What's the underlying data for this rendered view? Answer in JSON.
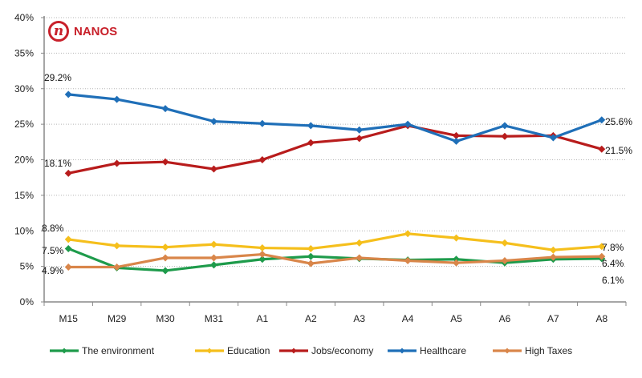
{
  "logo": {
    "mark": "n",
    "text": "NANOS"
  },
  "chart_data": {
    "type": "line",
    "title": "",
    "xlabel": "",
    "ylabel": "",
    "ylim": [
      0,
      40
    ],
    "yticks": [
      0,
      5,
      10,
      15,
      20,
      25,
      30,
      35,
      40
    ],
    "ytick_labels": [
      "0%",
      "5%",
      "10%",
      "15%",
      "20%",
      "25%",
      "30%",
      "35%",
      "40%"
    ],
    "grid": "horizontal-dotted",
    "legend_position": "bottom",
    "categories": [
      "M15",
      "M29",
      "M30",
      "M31",
      "A1",
      "A2",
      "A3",
      "A4",
      "A5",
      "A6",
      "A7",
      "A8"
    ],
    "series": [
      {
        "name": "The environment",
        "color": "#1e9b4b",
        "values": [
          7.5,
          4.8,
          4.4,
          5.2,
          6.0,
          6.4,
          6.1,
          5.9,
          6.0,
          5.5,
          6.0,
          6.1
        ],
        "labels": {
          "first": "7.5%",
          "last": "6.1%"
        }
      },
      {
        "name": "Education",
        "color": "#f5bf1c",
        "values": [
          8.8,
          7.9,
          7.7,
          8.1,
          7.6,
          7.5,
          8.3,
          9.6,
          9.0,
          8.3,
          7.3,
          7.8
        ],
        "labels": {
          "first": "8.8%",
          "last": "7.8%"
        }
      },
      {
        "name": "Jobs/economy",
        "color": "#b81c1c",
        "values": [
          18.1,
          19.5,
          19.7,
          18.7,
          20.0,
          22.4,
          23.0,
          24.8,
          23.4,
          23.3,
          23.4,
          21.5
        ],
        "labels": {
          "first": "18.1%",
          "last": "21.5%"
        }
      },
      {
        "name": "Healthcare",
        "color": "#1f6fb8",
        "values": [
          29.2,
          28.5,
          27.2,
          25.4,
          25.1,
          24.8,
          24.2,
          25.0,
          22.6,
          24.8,
          23.1,
          25.6
        ],
        "labels": {
          "first": "29.2%",
          "last": "25.6%"
        }
      },
      {
        "name": "High Taxes",
        "color": "#d9864a",
        "values": [
          4.9,
          4.9,
          6.2,
          6.2,
          6.7,
          5.4,
          6.2,
          5.8,
          5.5,
          5.8,
          6.3,
          6.4
        ],
        "labels": {
          "first": "4.9%",
          "last": "6.4%"
        }
      }
    ]
  }
}
